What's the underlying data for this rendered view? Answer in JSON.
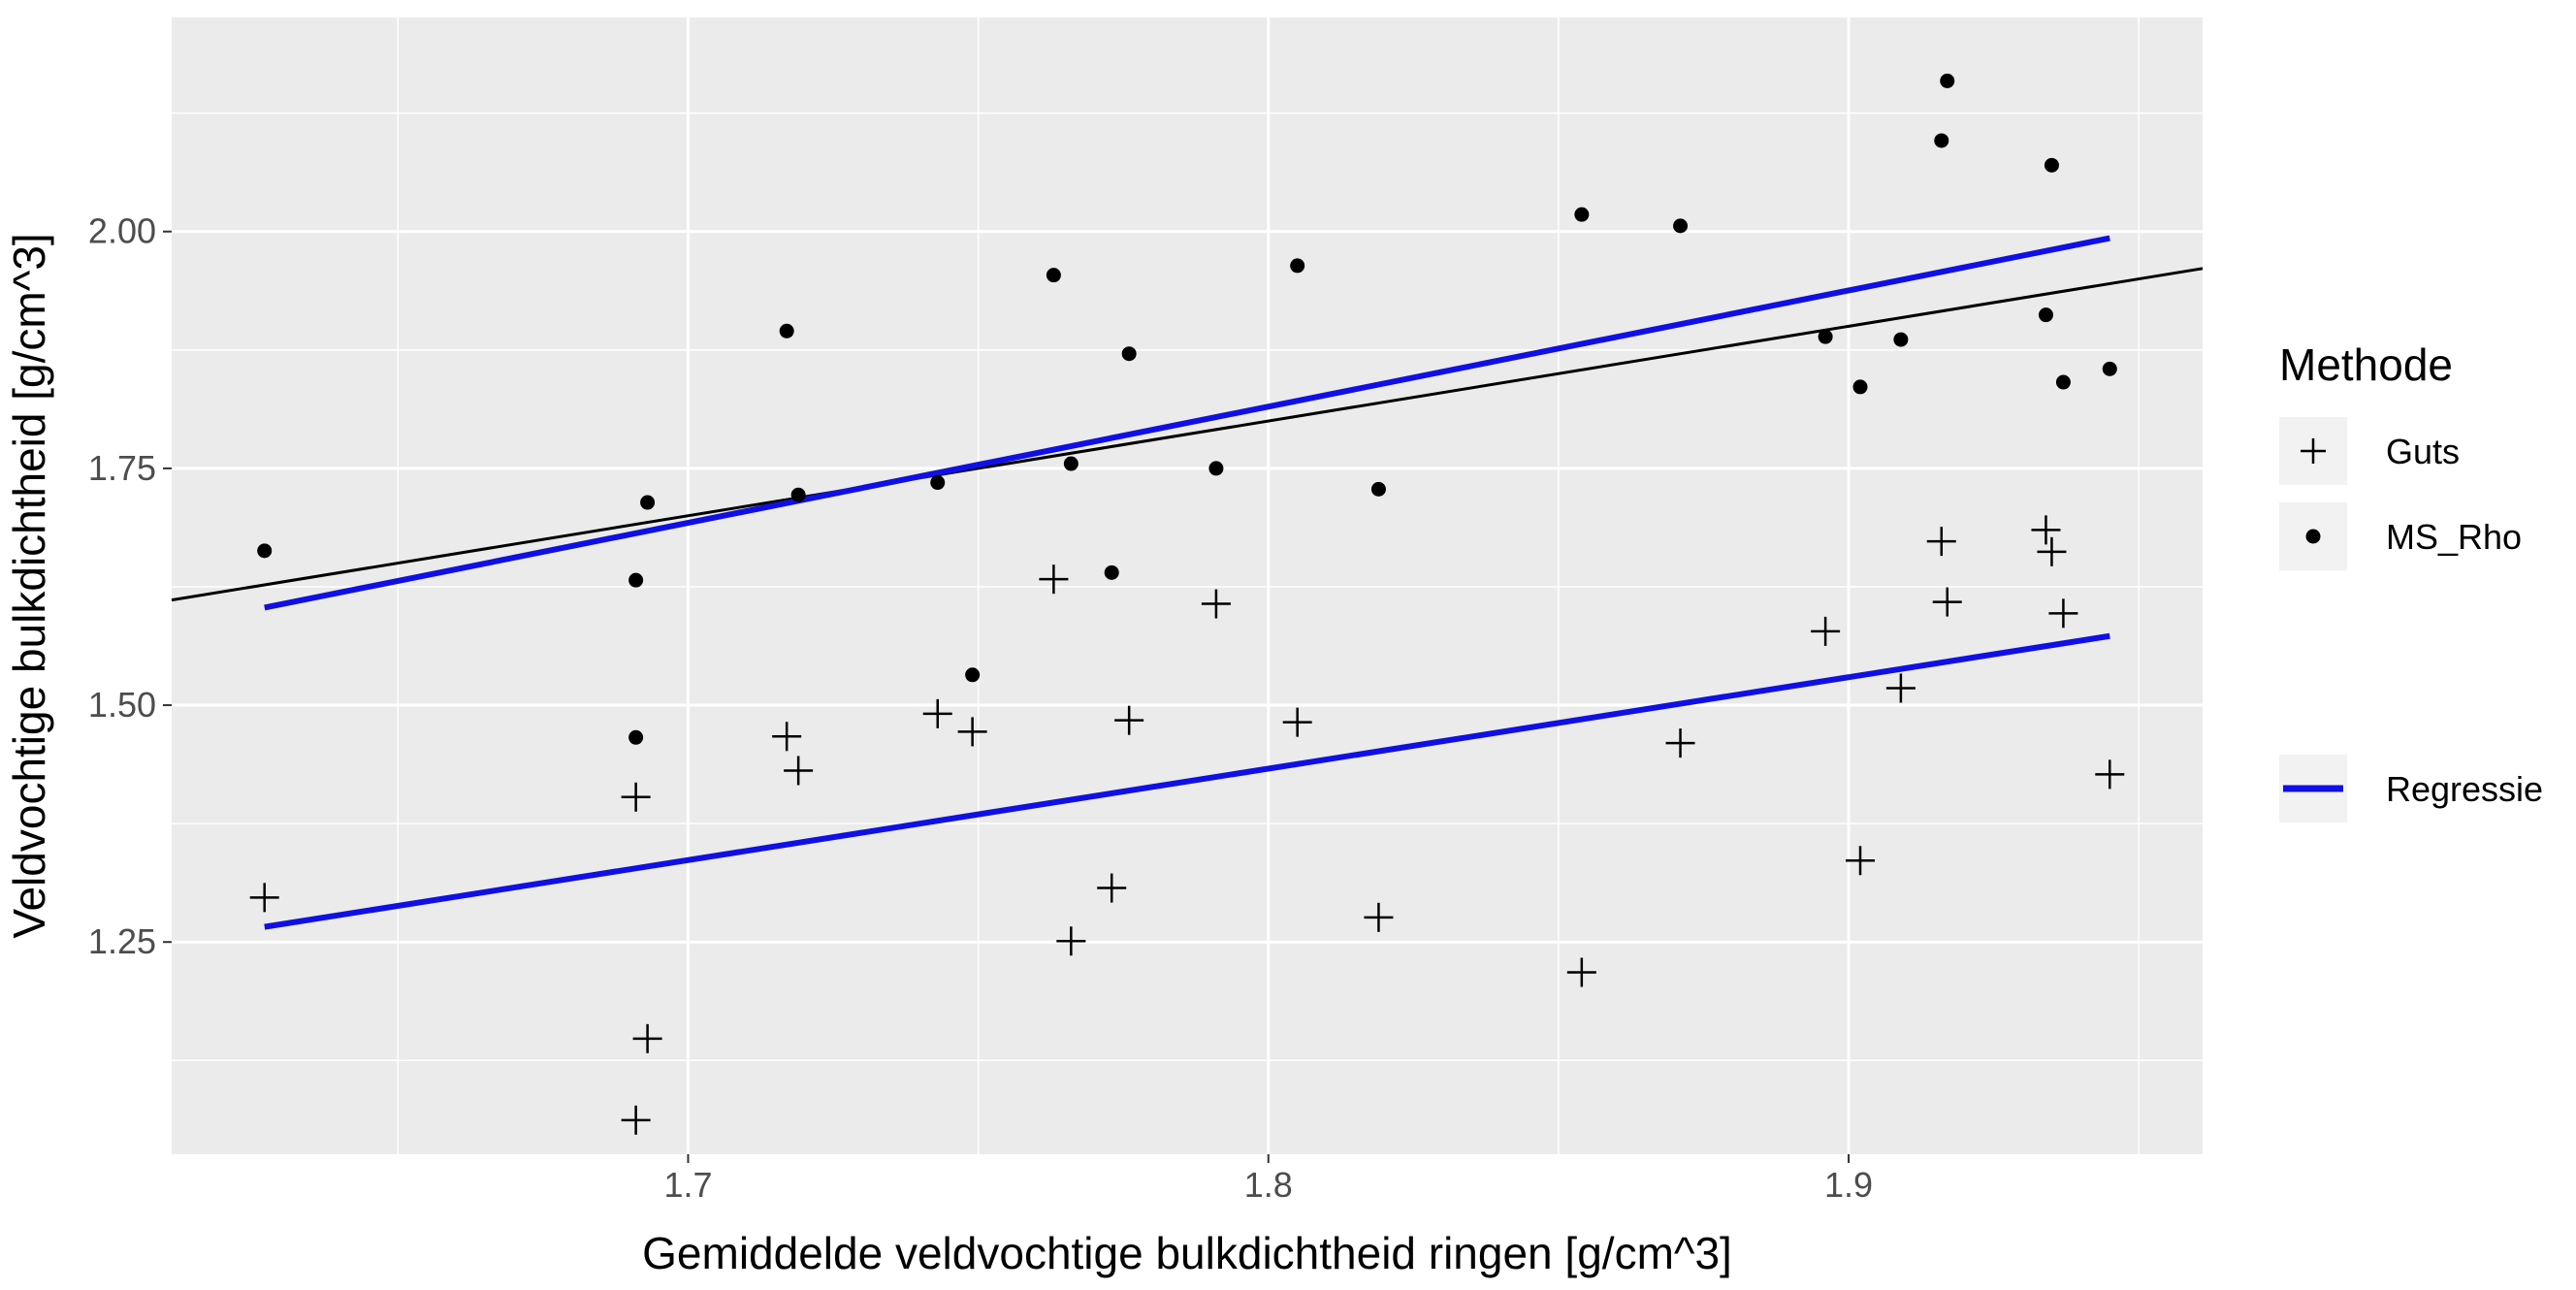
{
  "chart_data": {
    "type": "scatter",
    "title": "",
    "xlabel": "Gemiddelde veldvochtige bulkdichtheid ringen [g/cm^3]",
    "ylabel": "Veldvochtige bulkdichtheid [g/cm^3]",
    "xlim": [
      1.611,
      1.961
    ],
    "ylim": [
      1.026,
      2.226
    ],
    "x_ticks": [
      1.7,
      1.8,
      1.9
    ],
    "x_tick_labels": [
      "1.7",
      "1.8",
      "1.9"
    ],
    "y_ticks": [
      1.25,
      1.5,
      1.75,
      2.0
    ],
    "y_tick_labels": [
      "1.25",
      "1.50",
      "1.75",
      "2.00"
    ],
    "grid": true,
    "legend": {
      "title": "Methode",
      "position": "right",
      "point_entries": [
        {
          "label": "Guts",
          "shape": "plus"
        },
        {
          "label": "MS_Rho",
          "shape": "dot"
        }
      ],
      "line_entries": [
        {
          "label": "Regressie",
          "color": "#1010e6"
        }
      ]
    },
    "series": [
      {
        "name": "Guts",
        "shape": "plus",
        "color": "#000000",
        "points": [
          [
            1.627,
            1.297
          ],
          [
            1.691,
            1.403
          ],
          [
            1.693,
            1.148
          ],
          [
            1.691,
            1.062
          ],
          [
            1.717,
            1.467
          ],
          [
            1.719,
            1.431
          ],
          [
            1.743,
            1.491
          ],
          [
            1.749,
            1.472
          ],
          [
            1.763,
            1.633
          ],
          [
            1.766,
            1.251
          ],
          [
            1.773,
            1.307
          ],
          [
            1.776,
            1.484
          ],
          [
            1.791,
            1.607
          ],
          [
            1.805,
            1.482
          ],
          [
            1.819,
            1.276
          ],
          [
            1.854,
            1.218
          ],
          [
            1.871,
            1.46
          ],
          [
            1.896,
            1.578
          ],
          [
            1.902,
            1.336
          ],
          [
            1.909,
            1.518
          ],
          [
            1.916,
            1.673
          ],
          [
            1.917,
            1.609
          ],
          [
            1.934,
            1.685
          ],
          [
            1.935,
            1.662
          ],
          [
            1.937,
            1.597
          ],
          [
            1.945,
            1.427
          ]
        ]
      },
      {
        "name": "MS_Rho",
        "shape": "dot",
        "color": "#000000",
        "points": [
          [
            1.627,
            1.663
          ],
          [
            1.691,
            1.632
          ],
          [
            1.691,
            1.466
          ],
          [
            1.693,
            1.714
          ],
          [
            1.717,
            1.895
          ],
          [
            1.719,
            1.722
          ],
          [
            1.743,
            1.735
          ],
          [
            1.749,
            1.532
          ],
          [
            1.763,
            1.954
          ],
          [
            1.766,
            1.755
          ],
          [
            1.773,
            1.64
          ],
          [
            1.776,
            1.871
          ],
          [
            1.791,
            1.75
          ],
          [
            1.805,
            1.964
          ],
          [
            1.819,
            1.728
          ],
          [
            1.854,
            2.018
          ],
          [
            1.871,
            2.006
          ],
          [
            1.896,
            1.889
          ],
          [
            1.902,
            1.836
          ],
          [
            1.909,
            1.886
          ],
          [
            1.916,
            2.096
          ],
          [
            1.917,
            2.159
          ],
          [
            1.934,
            1.912
          ],
          [
            1.935,
            2.07
          ],
          [
            1.937,
            1.841
          ],
          [
            1.945,
            1.855
          ]
        ]
      }
    ],
    "regression_lines": [
      {
        "name": "Regressie MS_Rho",
        "color": "#1010e6",
        "x": [
          1.627,
          1.945
        ],
        "y": [
          1.603,
          1.993
        ]
      },
      {
        "name": "Regressie Guts",
        "color": "#1010e6",
        "x": [
          1.627,
          1.945
        ],
        "y": [
          1.266,
          1.573
        ]
      }
    ],
    "reference_line": {
      "name": "y = x",
      "color": "#000000",
      "slope": 1,
      "intercept": 0
    }
  }
}
